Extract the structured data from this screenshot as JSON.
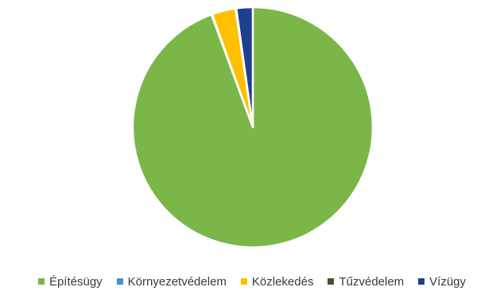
{
  "chart_data": {
    "type": "pie",
    "title": "",
    "labels": [
      "Építésügy",
      "Környezetvédelem",
      "Közlekedés",
      "Tűzvédelem",
      "Vízügy"
    ],
    "values": [
      94.4,
      0.1,
      3.2,
      0.1,
      2.2
    ],
    "colors": [
      "#7AB648",
      "#4A90D9",
      "#FFC000",
      "#4D4D33",
      "#1F3F8F"
    ],
    "legend_position": "bottom"
  }
}
